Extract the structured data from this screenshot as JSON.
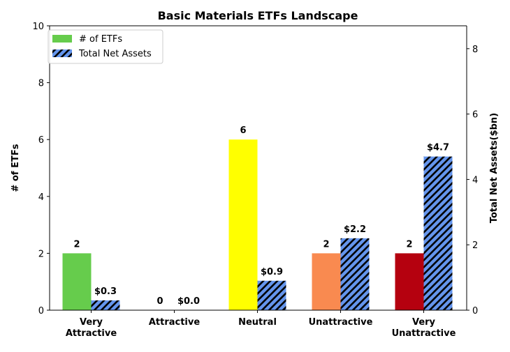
{
  "chart_data": {
    "type": "bar",
    "title": "Basic Materials ETFs Landscape",
    "categories": [
      "Very\nAttractive",
      "Attractive",
      "Neutral",
      "Unattractive",
      "Very\nUnattractive"
    ],
    "series": [
      {
        "name": "# of ETFs",
        "axis": "left",
        "values": [
          2,
          0,
          6,
          2,
          2
        ],
        "labels": [
          "2",
          "0",
          "6",
          "2",
          "2"
        ],
        "colors": [
          "#66cc4c",
          "#66cc4c",
          "#ffff00",
          "#f98a50",
          "#b5010f"
        ],
        "legend_color": "#66cc4c"
      },
      {
        "name": "Total Net Assets",
        "axis": "right",
        "values": [
          0.3,
          0.0,
          0.9,
          2.2,
          4.7
        ],
        "labels": [
          "$0.3",
          "$0.0",
          "$0.9",
          "$2.2",
          "$4.7"
        ],
        "color": "#6495ed",
        "hatch": "diagonal"
      }
    ],
    "ylabel": "# of ETFs",
    "ylabel_right": "Total Net Assets($bn)",
    "ylim": [
      0,
      10
    ],
    "ylim_right": [
      0,
      8.7
    ],
    "yticks": [
      0,
      2,
      4,
      6,
      8,
      10
    ],
    "yticks_right": [
      0,
      2,
      4,
      6,
      8
    ],
    "legend_position": "top-left",
    "grid": false
  }
}
